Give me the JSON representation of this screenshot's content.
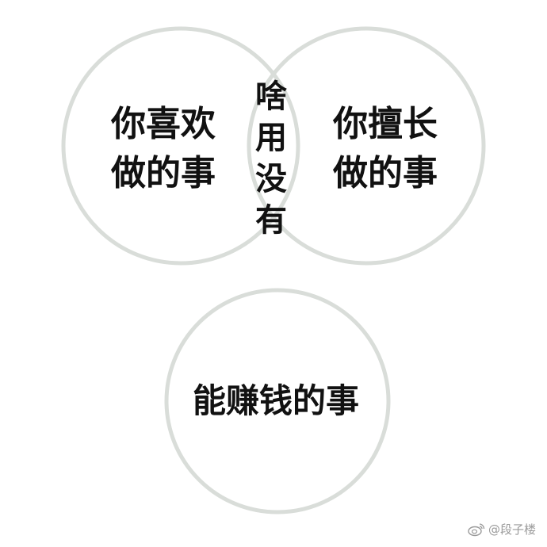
{
  "diagram": {
    "circle_left": {
      "line1": "你喜欢",
      "line2": "做的事"
    },
    "circle_right": {
      "line1": "你擅长",
      "line2": "做的事"
    },
    "overlap": {
      "chars": [
        "啥",
        "用",
        "没",
        "有"
      ]
    },
    "circle_bottom": {
      "label": "能赚钱的事"
    }
  },
  "watermark": {
    "icon": "weibo-icon",
    "text": "@段子楼"
  },
  "colors": {
    "circle_stroke": "#d9ddd9",
    "text": "#111111",
    "watermark": "#9a9a9a"
  }
}
